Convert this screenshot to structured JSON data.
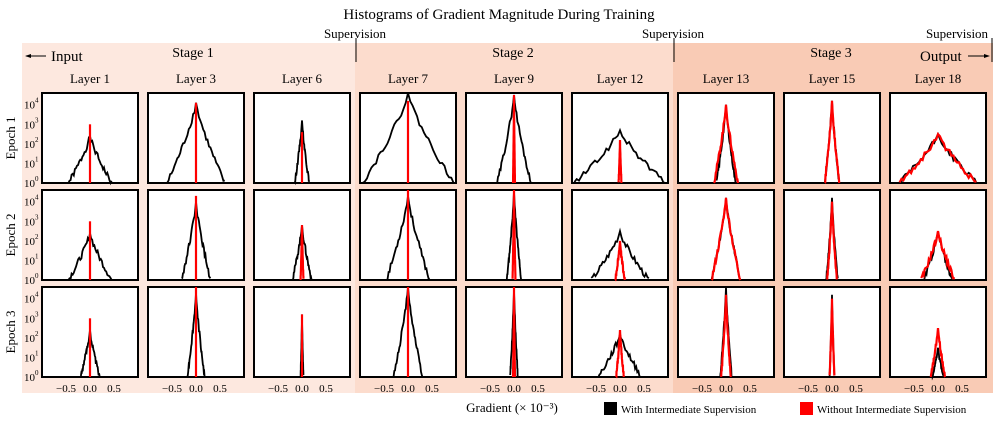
{
  "chart_data": {
    "type": "line",
    "title": "Histograms of Gradient Magnitude During Training",
    "xlabel": "Gradient (× 10⁻³)",
    "xlim": [
      -1,
      1
    ],
    "ylim_log10": [
      0,
      4.6
    ],
    "x_ticks": [
      "−0.5",
      "0.0",
      "0.5"
    ],
    "x_tick_values": [
      -0.5,
      0,
      0.5
    ],
    "y_ticks": [
      "10",
      "10",
      "10",
      "10",
      "10"
    ],
    "y_tick_exponents": [
      "0",
      "1",
      "2",
      "3",
      "4"
    ],
    "input_label": "Input",
    "output_label": "Output",
    "supervision_label": "Supervision",
    "stages": [
      {
        "name": "Stage 1",
        "color": "#fde8df"
      },
      {
        "name": "Stage 2",
        "color": "#fcdccd"
      },
      {
        "name": "Stage 3",
        "color": "#f9cbb5"
      }
    ],
    "layers": [
      "Layer 1",
      "Layer 3",
      "Layer 6",
      "Layer 7",
      "Layer 9",
      "Layer 12",
      "Layer 13",
      "Layer 15",
      "Layer 18"
    ],
    "epochs": [
      "Epoch 1",
      "Epoch 2",
      "Epoch 3"
    ],
    "legend": [
      {
        "label": "With Intermediate Supervision",
        "color": "#000000"
      },
      {
        "label": "Without Intermediate Supervision",
        "color": "#ff0000"
      }
    ],
    "note": "Each panel: log10 peak count and half-width (x extent where count reaches 10^0) for each series",
    "panels": [
      [
        [
          2.4,
          0.45,
          3.0,
          0.0
        ],
        [
          4.1,
          0.6,
          4.1,
          0.0
        ],
        [
          3.2,
          0.15,
          2.6,
          0.0
        ],
        [
          4.6,
          0.95,
          4.2,
          0.0
        ],
        [
          4.5,
          0.35,
          4.5,
          0.02
        ],
        [
          2.7,
          0.95,
          2.2,
          0.03
        ],
        [
          4.0,
          0.2,
          4.0,
          0.25
        ],
        [
          4.2,
          0.15,
          4.2,
          0.15
        ],
        [
          2.5,
          0.8,
          2.5,
          0.8
        ]
      ],
      [
        [
          2.4,
          0.45,
          3.0,
          0.0
        ],
        [
          4.0,
          0.3,
          4.3,
          0.0
        ],
        [
          2.8,
          0.2,
          2.8,
          0.03
        ],
        [
          4.3,
          0.45,
          4.6,
          0.0
        ],
        [
          4.5,
          0.15,
          4.6,
          0.03
        ],
        [
          2.5,
          0.6,
          2.0,
          0.1
        ],
        [
          4.2,
          0.3,
          4.2,
          0.3
        ],
        [
          4.2,
          0.12,
          4.0,
          0.1
        ],
        [
          2.5,
          0.3,
          2.5,
          0.35
        ]
      ],
      [
        [
          2.4,
          0.2,
          3.0,
          0.0
        ],
        [
          4.3,
          0.18,
          4.6,
          0.0
        ],
        [
          3.2,
          0.03,
          3.2,
          0.0
        ],
        [
          4.6,
          0.3,
          4.6,
          0.0
        ],
        [
          4.5,
          0.08,
          4.6,
          0.02
        ],
        [
          2.2,
          0.45,
          2.4,
          0.08
        ],
        [
          4.6,
          0.12,
          4.2,
          0.1
        ],
        [
          4.2,
          0.05,
          4.0,
          0.05
        ],
        [
          1.5,
          0.12,
          2.5,
          0.15
        ]
      ]
    ]
  }
}
